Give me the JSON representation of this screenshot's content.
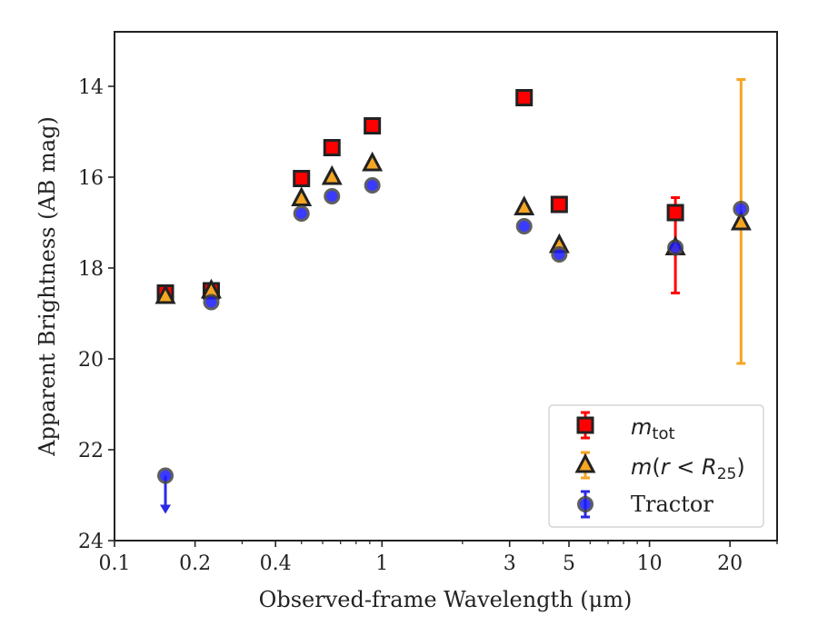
{
  "chart_data": {
    "type": "scatter",
    "xlabel": "Observed-frame Wavelength (μm)",
    "ylabel": "Apparent Brightness (AB mag)",
    "xscale": "log",
    "xlim": [
      0.1,
      30
    ],
    "ylim": [
      24,
      12.8
    ],
    "y_inverted": true,
    "xticks": [
      {
        "value": 0.1,
        "label": "0.1"
      },
      {
        "value": 0.2,
        "label": "0.2"
      },
      {
        "value": 0.4,
        "label": "0.4"
      },
      {
        "value": 1,
        "label": "1"
      },
      {
        "value": 3,
        "label": "3"
      },
      {
        "value": 5,
        "label": "5"
      },
      {
        "value": 10,
        "label": "10"
      },
      {
        "value": 20,
        "label": "20"
      }
    ],
    "yticks": [
      {
        "value": 14,
        "label": "14"
      },
      {
        "value": 16,
        "label": "16"
      },
      {
        "value": 18,
        "label": "18"
      },
      {
        "value": 20,
        "label": "20"
      },
      {
        "value": 22,
        "label": "22"
      },
      {
        "value": 24,
        "label": "24"
      }
    ],
    "legend_position": "lower-right",
    "series": [
      {
        "name": "m_tot",
        "marker": "square",
        "face_color": "#ff0000",
        "edge_color": "#222222",
        "err_color": "#ff0000",
        "points": [
          {
            "x": 0.155,
            "y": 18.55
          },
          {
            "x": 0.23,
            "y": 18.5
          },
          {
            "x": 0.5,
            "y": 16.03
          },
          {
            "x": 0.65,
            "y": 15.35
          },
          {
            "x": 0.92,
            "y": 14.87
          },
          {
            "x": 3.4,
            "y": 14.25
          },
          {
            "x": 4.6,
            "y": 16.6
          },
          {
            "x": 12.5,
            "y": 16.78,
            "yerr": [
              18.55,
              16.45
            ]
          }
        ]
      },
      {
        "name": "m(r < R25)",
        "marker": "triangle",
        "face_color": "#f5a623",
        "edge_color": "#222222",
        "err_color": "#f5a623",
        "points": [
          {
            "x": 0.155,
            "y": 18.62
          },
          {
            "x": 0.23,
            "y": 18.5
          },
          {
            "x": 0.5,
            "y": 16.47
          },
          {
            "x": 0.65,
            "y": 16.0
          },
          {
            "x": 0.92,
            "y": 15.7
          },
          {
            "x": 3.4,
            "y": 16.67
          },
          {
            "x": 4.6,
            "y": 17.5
          },
          {
            "x": 12.5,
            "y": 17.55
          },
          {
            "x": 22,
            "y": 17.0,
            "yerr": [
              20.1,
              13.85
            ]
          }
        ]
      },
      {
        "name": "Tractor",
        "marker": "circle",
        "face_color": "#1a1aff",
        "edge_color": "#444444",
        "err_color": "#2a2ae6",
        "points": [
          {
            "x": 0.155,
            "y": 22.57,
            "upper_limit": true
          },
          {
            "x": 0.23,
            "y": 18.75
          },
          {
            "x": 0.5,
            "y": 16.8
          },
          {
            "x": 0.65,
            "y": 16.42
          },
          {
            "x": 0.92,
            "y": 16.18
          },
          {
            "x": 3.4,
            "y": 17.08
          },
          {
            "x": 4.6,
            "y": 17.7
          },
          {
            "x": 12.5,
            "y": 17.55
          },
          {
            "x": 22,
            "y": 16.7
          }
        ]
      }
    ]
  }
}
